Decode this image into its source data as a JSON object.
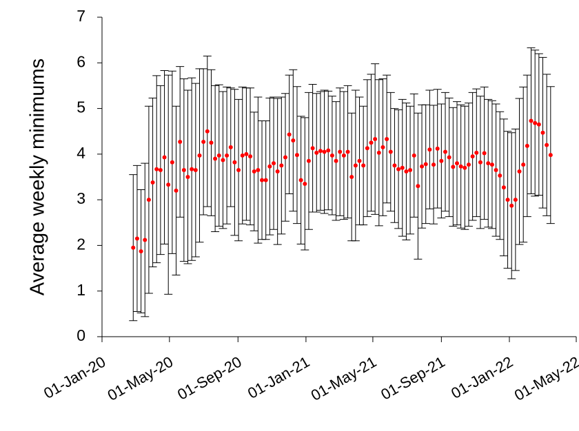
{
  "chart_data": {
    "type": "errorbar",
    "y_label": "Average weekly minimums",
    "x": [
      "2020-02-26",
      "2020-03-04",
      "2020-03-11",
      "2020-03-18",
      "2020-03-25",
      "2020-04-01",
      "2020-04-08",
      "2020-04-15",
      "2020-04-22",
      "2020-04-29",
      "2020-05-06",
      "2020-05-13",
      "2020-05-20",
      "2020-05-27",
      "2020-06-03",
      "2020-06-10",
      "2020-06-17",
      "2020-06-24",
      "2020-07-01",
      "2020-07-08",
      "2020-07-15",
      "2020-07-22",
      "2020-07-29",
      "2020-08-05",
      "2020-08-12",
      "2020-08-19",
      "2020-08-26",
      "2020-09-02",
      "2020-09-09",
      "2020-09-16",
      "2020-09-23",
      "2020-09-30",
      "2020-10-07",
      "2020-10-14",
      "2020-10-21",
      "2020-10-28",
      "2020-11-04",
      "2020-11-11",
      "2020-11-18",
      "2020-11-25",
      "2020-12-02",
      "2020-12-09",
      "2020-12-16",
      "2020-12-23",
      "2020-12-30",
      "2021-01-06",
      "2021-01-13",
      "2021-01-20",
      "2021-01-27",
      "2021-02-03",
      "2021-02-10",
      "2021-02-17",
      "2021-02-24",
      "2021-03-03",
      "2021-03-10",
      "2021-03-17",
      "2021-03-24",
      "2021-03-31",
      "2021-04-07",
      "2021-04-14",
      "2021-04-21",
      "2021-04-28",
      "2021-05-05",
      "2021-05-12",
      "2021-05-19",
      "2021-05-26",
      "2021-06-02",
      "2021-06-09",
      "2021-06-16",
      "2021-06-23",
      "2021-06-30",
      "2021-07-07",
      "2021-07-14",
      "2021-07-21",
      "2021-07-28",
      "2021-08-04",
      "2021-08-11",
      "2021-08-18",
      "2021-08-25",
      "2021-09-01",
      "2021-09-08",
      "2021-09-15",
      "2021-09-22",
      "2021-09-29",
      "2021-10-06",
      "2021-10-13",
      "2021-10-20",
      "2021-10-27",
      "2021-11-03",
      "2021-11-10",
      "2021-11-17",
      "2021-11-24",
      "2021-12-01",
      "2021-12-08",
      "2021-12-15",
      "2021-12-22",
      "2021-12-29",
      "2022-01-05",
      "2022-01-12",
      "2022-01-19",
      "2022-01-26",
      "2022-02-02",
      "2022-02-09",
      "2022-02-16",
      "2022-02-23",
      "2022-03-02",
      "2022-03-09",
      "2022-03-16"
    ],
    "values": [
      1.95,
      2.15,
      1.87,
      2.12,
      3.0,
      3.38,
      3.67,
      3.65,
      3.93,
      3.33,
      3.82,
      3.2,
      4.27,
      3.65,
      3.5,
      3.67,
      3.65,
      3.97,
      4.27,
      4.5,
      4.25,
      3.9,
      3.97,
      3.87,
      3.97,
      4.15,
      3.82,
      3.65,
      3.97,
      4.0,
      3.95,
      3.62,
      3.65,
      3.43,
      3.43,
      3.73,
      3.8,
      3.62,
      3.75,
      3.93,
      4.43,
      4.3,
      3.98,
      3.43,
      3.35,
      3.85,
      4.13,
      4.03,
      4.07,
      4.05,
      4.08,
      3.97,
      3.85,
      4.05,
      3.97,
      4.05,
      3.5,
      3.75,
      3.85,
      3.75,
      4.13,
      4.25,
      4.33,
      4.03,
      4.15,
      4.33,
      4.05,
      3.75,
      3.67,
      3.7,
      3.62,
      3.65,
      3.97,
      3.3,
      3.73,
      3.78,
      4.1,
      3.77,
      4.12,
      3.85,
      4.05,
      3.93,
      3.72,
      3.8,
      3.73,
      3.7,
      3.77,
      3.95,
      4.03,
      3.82,
      4.02,
      3.8,
      3.77,
      3.65,
      3.53,
      3.27,
      3.0,
      2.87,
      3.0,
      3.62,
      3.77,
      4.18,
      4.73,
      4.68,
      4.65,
      4.47,
      4.2,
      3.98
    ],
    "errors": [
      1.6,
      1.6,
      1.35,
      1.68,
      2.05,
      1.85,
      2.05,
      1.85,
      1.9,
      2.4,
      2.0,
      1.85,
      1.65,
      2.0,
      1.9,
      2.0,
      1.9,
      1.9,
      1.6,
      1.65,
      1.6,
      1.6,
      1.55,
      1.5,
      1.5,
      1.3,
      1.6,
      1.55,
      1.5,
      1.45,
      1.5,
      1.3,
      1.6,
      1.3,
      1.3,
      1.5,
      1.45,
      1.6,
      1.5,
      1.4,
      1.3,
      1.55,
      1.5,
      1.4,
      1.45,
      1.5,
      1.4,
      1.3,
      1.3,
      1.35,
      1.3,
      1.3,
      1.3,
      1.4,
      1.4,
      1.45,
      1.4,
      1.65,
      1.4,
      1.3,
      1.5,
      1.5,
      1.65,
      1.6,
      1.5,
      1.4,
      1.3,
      1.25,
      1.3,
      1.5,
      1.5,
      1.4,
      1.35,
      1.6,
      1.35,
      1.3,
      1.3,
      1.3,
      1.3,
      1.25,
      1.3,
      1.3,
      1.3,
      1.35,
      1.35,
      1.35,
      1.35,
      1.4,
      1.4,
      1.45,
      1.45,
      1.4,
      1.4,
      1.45,
      1.4,
      1.5,
      1.5,
      1.6,
      1.55,
      1.6,
      1.7,
      1.55,
      1.6,
      1.6,
      1.55,
      1.65,
      1.55,
      1.5
    ],
    "color": "#ff0000",
    "error_color": "#000000",
    "xlim": [
      "2020-01-01",
      "2022-05-01"
    ],
    "xticks": [
      {
        "value": "2020-01-01",
        "label": "01-Jan-20"
      },
      {
        "value": "2020-05-01",
        "label": "01-May-20"
      },
      {
        "value": "2020-09-01",
        "label": "01-Sep-20"
      },
      {
        "value": "2021-01-01",
        "label": "01-Jan-21"
      },
      {
        "value": "2021-05-01",
        "label": "01-May-21"
      },
      {
        "value": "2021-09-01",
        "label": "01-Sep-21"
      },
      {
        "value": "2022-01-01",
        "label": "01-Jan-22"
      },
      {
        "value": "2022-05-01",
        "label": "01-May-22"
      }
    ],
    "ylim": [
      0,
      7
    ],
    "yticks": [
      0,
      1,
      2,
      3,
      4,
      5,
      6,
      7
    ]
  }
}
